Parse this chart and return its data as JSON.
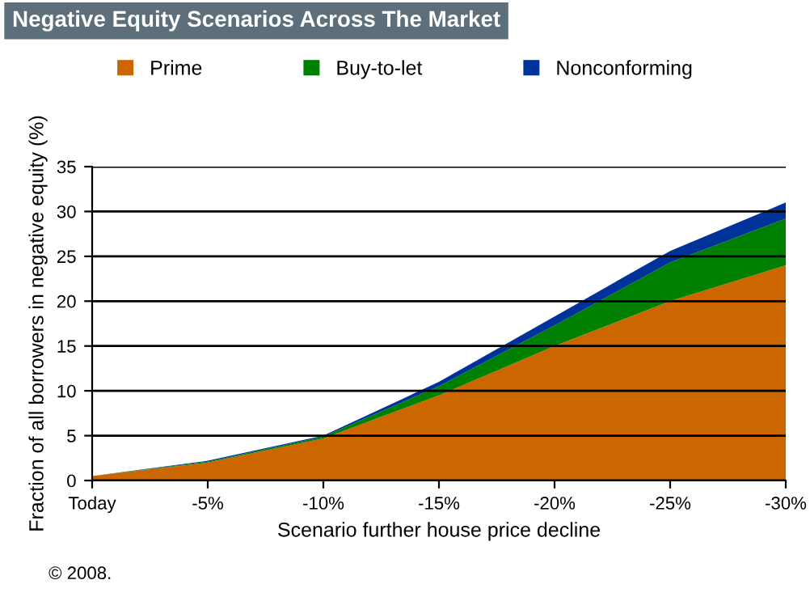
{
  "chart_data": {
    "type": "area",
    "stacked": true,
    "title": "Negative Equity Scenarios Across The Market",
    "categories": [
      "Today",
      "-5%",
      "-10%",
      "-15%",
      "-20%",
      "-25%",
      "-30%"
    ],
    "series": [
      {
        "name": "Prime",
        "color": "#cc6600",
        "values": [
          0.5,
          2,
          4.7,
          9.5,
          15,
          20,
          24
        ]
      },
      {
        "name": "Buy-to-let",
        "color": "#008000",
        "values": [
          0,
          0.1,
          0.2,
          1.0,
          2.3,
          4.3,
          5.2
        ]
      },
      {
        "name": "Nonconforming",
        "color": "#003399",
        "values": [
          0,
          0.1,
          0.1,
          0.5,
          1.0,
          1.3,
          1.8
        ]
      }
    ],
    "xlabel": "Scenario further house price decline",
    "ylabel": "Fraction of all borrowers in negative equity (%)",
    "ylim": [
      0,
      35
    ],
    "yticks": [
      0,
      5,
      10,
      15,
      20,
      25,
      30,
      35
    ],
    "grid": "y",
    "legend": "top",
    "annotations": [
      "© 2008."
    ]
  }
}
